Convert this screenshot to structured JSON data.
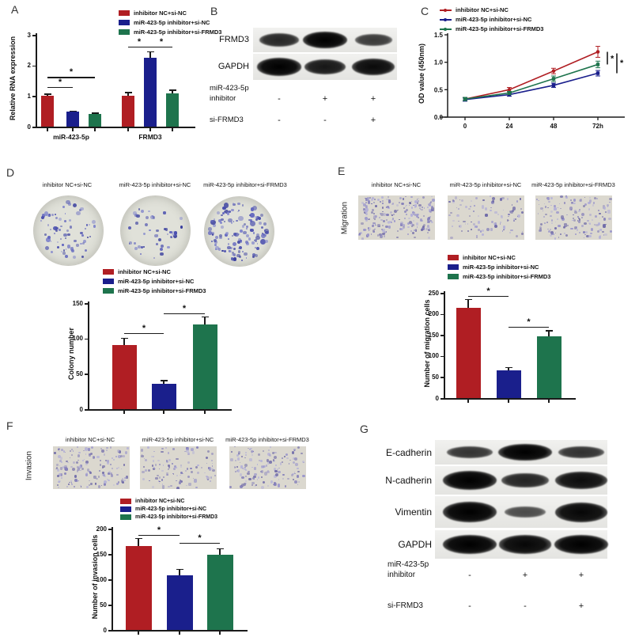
{
  "figure": {
    "groups": [
      "inhibitor NC+si-NC",
      "miR-423-5p inhibitor+si-NC",
      "miR-423-5p inhibitor+si-FRMD3"
    ],
    "group_colors": [
      "#b01e23",
      "#1a1f8c",
      "#1e744d"
    ],
    "sig_symbol": "*"
  },
  "panels": {
    "a": {
      "letter": "A"
    },
    "b": {
      "letter": "B",
      "blot_rows": [
        {
          "label": "FRMD3",
          "bands": [
            0.7,
            1.0,
            0.55
          ]
        },
        {
          "label": "GAPDH",
          "bands": [
            1.0,
            0.82,
            0.92
          ]
        }
      ],
      "conditions": [
        {
          "label_lines": [
            "miR-423-5p",
            "inhibitor"
          ],
          "values": [
            "-",
            "+",
            "+"
          ]
        },
        {
          "label_lines": [
            "si-FRMD3"
          ],
          "values": [
            "-",
            "-",
            "+"
          ]
        }
      ]
    },
    "c": {
      "letter": "C"
    },
    "d": {
      "letter": "D",
      "dish_densities": [
        70,
        45,
        130
      ]
    },
    "e": {
      "letter": "E",
      "row_label": "Migration",
      "densities": [
        220,
        100,
        150
      ]
    },
    "f": {
      "letter": "F",
      "row_label": "Invasion",
      "densities": [
        165,
        115,
        140
      ]
    },
    "g": {
      "letter": "G",
      "blot_rows": [
        {
          "label": "E-cadherin",
          "bands": [
            0.6,
            1.0,
            0.62
          ]
        },
        {
          "label": "N-cadherin",
          "bands": [
            1.0,
            0.72,
            0.9
          ]
        },
        {
          "label": "Vimentin",
          "bands": [
            1.0,
            0.42,
            0.95
          ]
        },
        {
          "label": "GAPDH",
          "bands": [
            1.0,
            0.95,
            1.0
          ]
        }
      ],
      "conditions": [
        {
          "label_lines": [
            "miR-423-5p",
            "inhibitor"
          ],
          "values": [
            "-",
            "+",
            "+"
          ]
        },
        {
          "label_lines": [
            "si-FRMD3"
          ],
          "values": [
            "-",
            "-",
            "+"
          ]
        }
      ]
    }
  },
  "chart_data": [
    {
      "id": "A",
      "type": "bar",
      "title": "",
      "ylabel": "Relative RNA expression",
      "categories": [
        "miR-423-5p",
        "FRMD3"
      ],
      "series": [
        {
          "name": "inhibitor NC+si-NC",
          "values": [
            1.0,
            1.0
          ],
          "errors": [
            0.08,
            0.13
          ]
        },
        {
          "name": "miR-423-5p inhibitor+si-NC",
          "values": [
            0.48,
            2.24
          ],
          "errors": [
            0.05,
            0.22
          ]
        },
        {
          "name": "miR-423-5p inhibitor+si-FRMD3",
          "values": [
            0.41,
            1.09
          ],
          "errors": [
            0.05,
            0.12
          ]
        }
      ],
      "ylim": [
        0,
        3
      ],
      "yticks": [
        0,
        1,
        2,
        3
      ],
      "legend_position": "top",
      "significance": [
        {
          "from": 0,
          "to": 1,
          "y": 1.3,
          "label": "*"
        },
        {
          "from": 0,
          "to": 2,
          "y": 1.62,
          "label": "*"
        },
        {
          "from": 3,
          "to": 4,
          "y": 2.62,
          "label": "*"
        },
        {
          "from": 4,
          "to": 5,
          "y": 2.62,
          "label": "*"
        }
      ]
    },
    {
      "id": "C",
      "type": "line",
      "title": "",
      "ylabel": "OD value (450nm)",
      "xlabel": "",
      "x": [
        0,
        24,
        48,
        72
      ],
      "xticklabels": [
        "0",
        "24",
        "48",
        "72h"
      ],
      "series": [
        {
          "name": "inhibitor NC+si-NC",
          "values": [
            0.33,
            0.5,
            0.84,
            1.19
          ],
          "errors": [
            0.03,
            0.04,
            0.05,
            0.1
          ]
        },
        {
          "name": "miR-423-5p inhibitor+si-NC",
          "values": [
            0.32,
            0.41,
            0.58,
            0.8
          ],
          "errors": [
            0.03,
            0.03,
            0.04,
            0.05
          ]
        },
        {
          "name": "miR-423-5p inhibitor+si-FRMD3",
          "values": [
            0.33,
            0.44,
            0.7,
            0.96
          ],
          "errors": [
            0.03,
            0.03,
            0.05,
            0.06
          ]
        }
      ],
      "ylim": [
        0,
        1.5
      ],
      "yticks": [
        "0.0",
        "0.5",
        "1.0",
        "1.5"
      ],
      "legend_position": "top",
      "significance": [
        {
          "between": [
            "inhibitor NC+si-NC",
            "miR-423-5p inhibitor+si-FRMD3"
          ],
          "label": "*"
        },
        {
          "between": [
            "inhibitor NC+si-NC",
            "miR-423-5p inhibitor+si-NC"
          ],
          "label": "*"
        }
      ]
    },
    {
      "id": "D",
      "type": "bar",
      "title": "",
      "ylabel": "Colony number",
      "categories": [
        "inhibitor NC+si-NC",
        "miR-423-5p inhibitor+si-NC",
        "miR-423-5p inhibitor+si-FRMD3"
      ],
      "values": [
        91,
        36,
        120
      ],
      "errors": [
        10,
        5,
        11
      ],
      "ylim": [
        0,
        150
      ],
      "yticks": [
        0,
        50,
        100,
        150
      ],
      "legend_position": "top",
      "significance": [
        {
          "from": 0,
          "to": 1,
          "y": 108,
          "label": "*"
        },
        {
          "from": 1,
          "to": 2,
          "y": 136,
          "label": "*"
        }
      ]
    },
    {
      "id": "E",
      "type": "bar",
      "title": "",
      "ylabel": "Number of migration cells",
      "categories": [
        "inhibitor NC+si-NC",
        "miR-423-5p inhibitor+si-NC",
        "miR-423-5p inhibitor+si-FRMD3"
      ],
      "values": [
        215,
        65,
        146
      ],
      "errors": [
        20,
        8,
        15
      ],
      "ylim": [
        0,
        250
      ],
      "yticks": [
        0,
        50,
        100,
        150,
        200,
        250
      ],
      "legend_position": "top",
      "significance": [
        {
          "from": 0,
          "to": 1,
          "y": 243,
          "label": "*"
        },
        {
          "from": 1,
          "to": 2,
          "y": 170,
          "label": "*"
        }
      ]
    },
    {
      "id": "F",
      "type": "bar",
      "title": "",
      "ylabel": "Number of invasion cells",
      "categories": [
        "inhibitor NC+si-NC",
        "miR-423-5p inhibitor+si-NC",
        "miR-423-5p inhibitor+si-FRMD3"
      ],
      "values": [
        165,
        108,
        148
      ],
      "errors": [
        16,
        12,
        13
      ],
      "ylim": [
        0,
        200
      ],
      "yticks": [
        0,
        50,
        100,
        150,
        200
      ],
      "legend_position": "top",
      "significance": [
        {
          "from": 0,
          "to": 1,
          "y": 188,
          "label": "*"
        },
        {
          "from": 1,
          "to": 2,
          "y": 172,
          "label": "*"
        }
      ]
    }
  ]
}
